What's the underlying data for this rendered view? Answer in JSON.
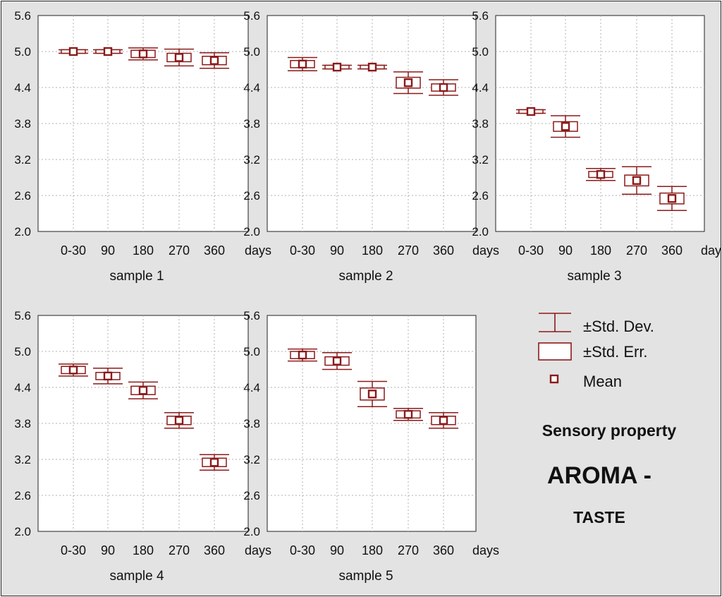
{
  "colors": {
    "mark": "#8b1a1a",
    "panel_bg": "#ffffff",
    "figure_bg": "#e3e3e3",
    "grid": "#b0b0b0"
  },
  "chart_data": [
    {
      "type": "box",
      "name": "sample 1",
      "xlabel": "sample 1",
      "x_unit": "days",
      "categories": [
        "0-30",
        "90",
        "180",
        "270",
        "360"
      ],
      "ylim": [
        2.0,
        5.6
      ],
      "yticks": [
        "2.0",
        "2.6",
        "3.2",
        "3.8",
        "4.4",
        "5.0",
        "5.6"
      ],
      "grid": true,
      "mean": [
        5.0,
        5.0,
        4.96,
        4.9,
        4.85
      ],
      "std_err": [
        0.03,
        0.03,
        0.06,
        0.07,
        0.07
      ],
      "std_dev": [
        0.03,
        0.03,
        0.1,
        0.14,
        0.13
      ]
    },
    {
      "type": "box",
      "name": "sample 2",
      "xlabel": "sample 2",
      "x_unit": "days",
      "categories": [
        "0-30",
        "90",
        "180",
        "270",
        "360"
      ],
      "ylim": [
        2.0,
        5.6
      ],
      "yticks": [
        "2.0",
        "2.6",
        "3.2",
        "3.8",
        "4.4",
        "5.0",
        "5.6"
      ],
      "grid": true,
      "mean": [
        4.79,
        4.74,
        4.74,
        4.48,
        4.4
      ],
      "std_err": [
        0.06,
        0.03,
        0.03,
        0.09,
        0.06
      ],
      "std_dev": [
        0.11,
        0.03,
        0.03,
        0.18,
        0.13
      ]
    },
    {
      "type": "box",
      "name": "sample 3",
      "xlabel": "sample 3",
      "x_unit": "days",
      "categories": [
        "0-30",
        "90",
        "180",
        "270",
        "360"
      ],
      "ylim": [
        2.0,
        5.6
      ],
      "yticks": [
        "2.0",
        "2.6",
        "3.2",
        "3.8",
        "4.4",
        "5.0",
        "5.6"
      ],
      "grid": true,
      "mean": [
        4.0,
        3.75,
        2.95,
        2.85,
        2.55
      ],
      "std_err": [
        0.03,
        0.08,
        0.05,
        0.09,
        0.09
      ],
      "std_dev": [
        0.03,
        0.18,
        0.1,
        0.23,
        0.2
      ]
    },
    {
      "type": "box",
      "name": "sample 4",
      "xlabel": "sample 4",
      "x_unit": "days",
      "categories": [
        "0-30",
        "90",
        "180",
        "270",
        "360"
      ],
      "ylim": [
        2.0,
        5.6
      ],
      "yticks": [
        "2.0",
        "2.6",
        "3.2",
        "3.8",
        "4.4",
        "5.0",
        "5.6"
      ],
      "grid": true,
      "mean": [
        4.69,
        4.59,
        4.35,
        3.85,
        3.15
      ],
      "std_err": [
        0.06,
        0.06,
        0.07,
        0.07,
        0.07
      ],
      "std_dev": [
        0.1,
        0.13,
        0.14,
        0.13,
        0.13
      ]
    },
    {
      "type": "box",
      "name": "sample 5",
      "xlabel": "sample 5",
      "x_unit": "days",
      "categories": [
        "0-30",
        "90",
        "180",
        "270",
        "360"
      ],
      "ylim": [
        2.0,
        5.6
      ],
      "yticks": [
        "2.0",
        "2.6",
        "3.2",
        "3.8",
        "4.4",
        "5.0",
        "5.6"
      ],
      "grid": true,
      "mean": [
        4.94,
        4.84,
        4.29,
        3.95,
        3.85
      ],
      "std_err": [
        0.06,
        0.07,
        0.1,
        0.06,
        0.07
      ],
      "std_dev": [
        0.1,
        0.14,
        0.21,
        0.1,
        0.13
      ]
    }
  ],
  "legend": {
    "std_dev": "±Std. Dev.",
    "std_err": "±Std. Err.",
    "mean": "Mean"
  },
  "caption": {
    "line1": "Sensory property",
    "line2": "AROMA -",
    "line3": "TASTE"
  }
}
